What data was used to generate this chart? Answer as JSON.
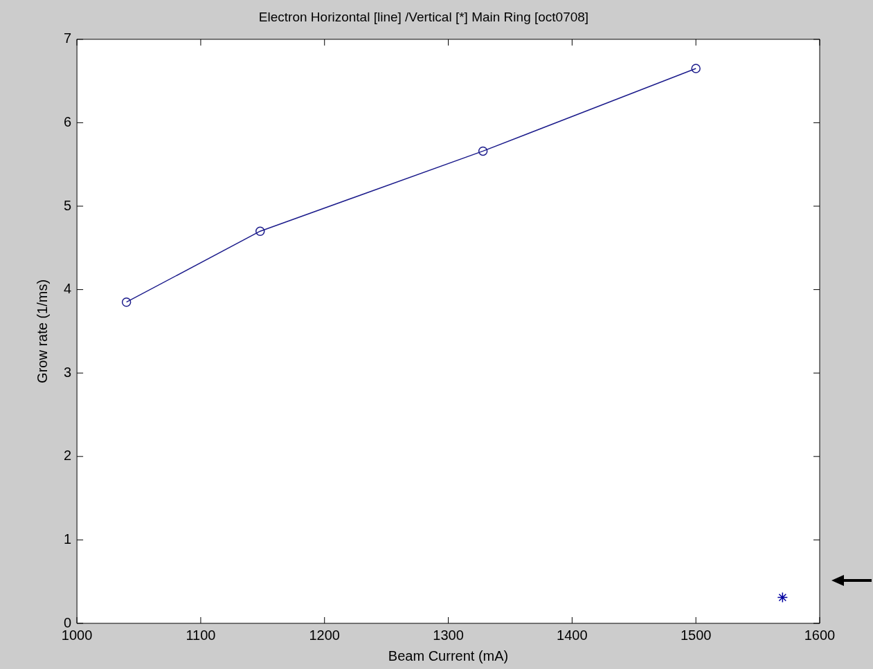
{
  "chart_data": {
    "type": "line",
    "title": "Electron Horizontal [line] /Vertical [*] Main Ring [oct0708]",
    "xlabel": "Beam Current (mA)",
    "ylabel": "Grow rate (1/ms)",
    "xlim": [
      1000,
      1600
    ],
    "xticks": [
      1000,
      1100,
      1200,
      1300,
      1400,
      1500,
      1600
    ],
    "ylim": [
      0,
      7
    ],
    "yticks": [
      0,
      1,
      2,
      3,
      4,
      5,
      6,
      7
    ],
    "series": [
      {
        "type": "line",
        "color": "#1c1c8c",
        "marker": "circle",
        "x": [
          1040,
          1148,
          1328,
          1500
        ],
        "values": [
          3.85,
          4.7,
          5.66,
          6.65
        ]
      },
      {
        "type": "scatter",
        "color": "#0000a0",
        "marker": "cross",
        "x": [
          1570
        ],
        "values": [
          0.31
        ]
      }
    ]
  }
}
